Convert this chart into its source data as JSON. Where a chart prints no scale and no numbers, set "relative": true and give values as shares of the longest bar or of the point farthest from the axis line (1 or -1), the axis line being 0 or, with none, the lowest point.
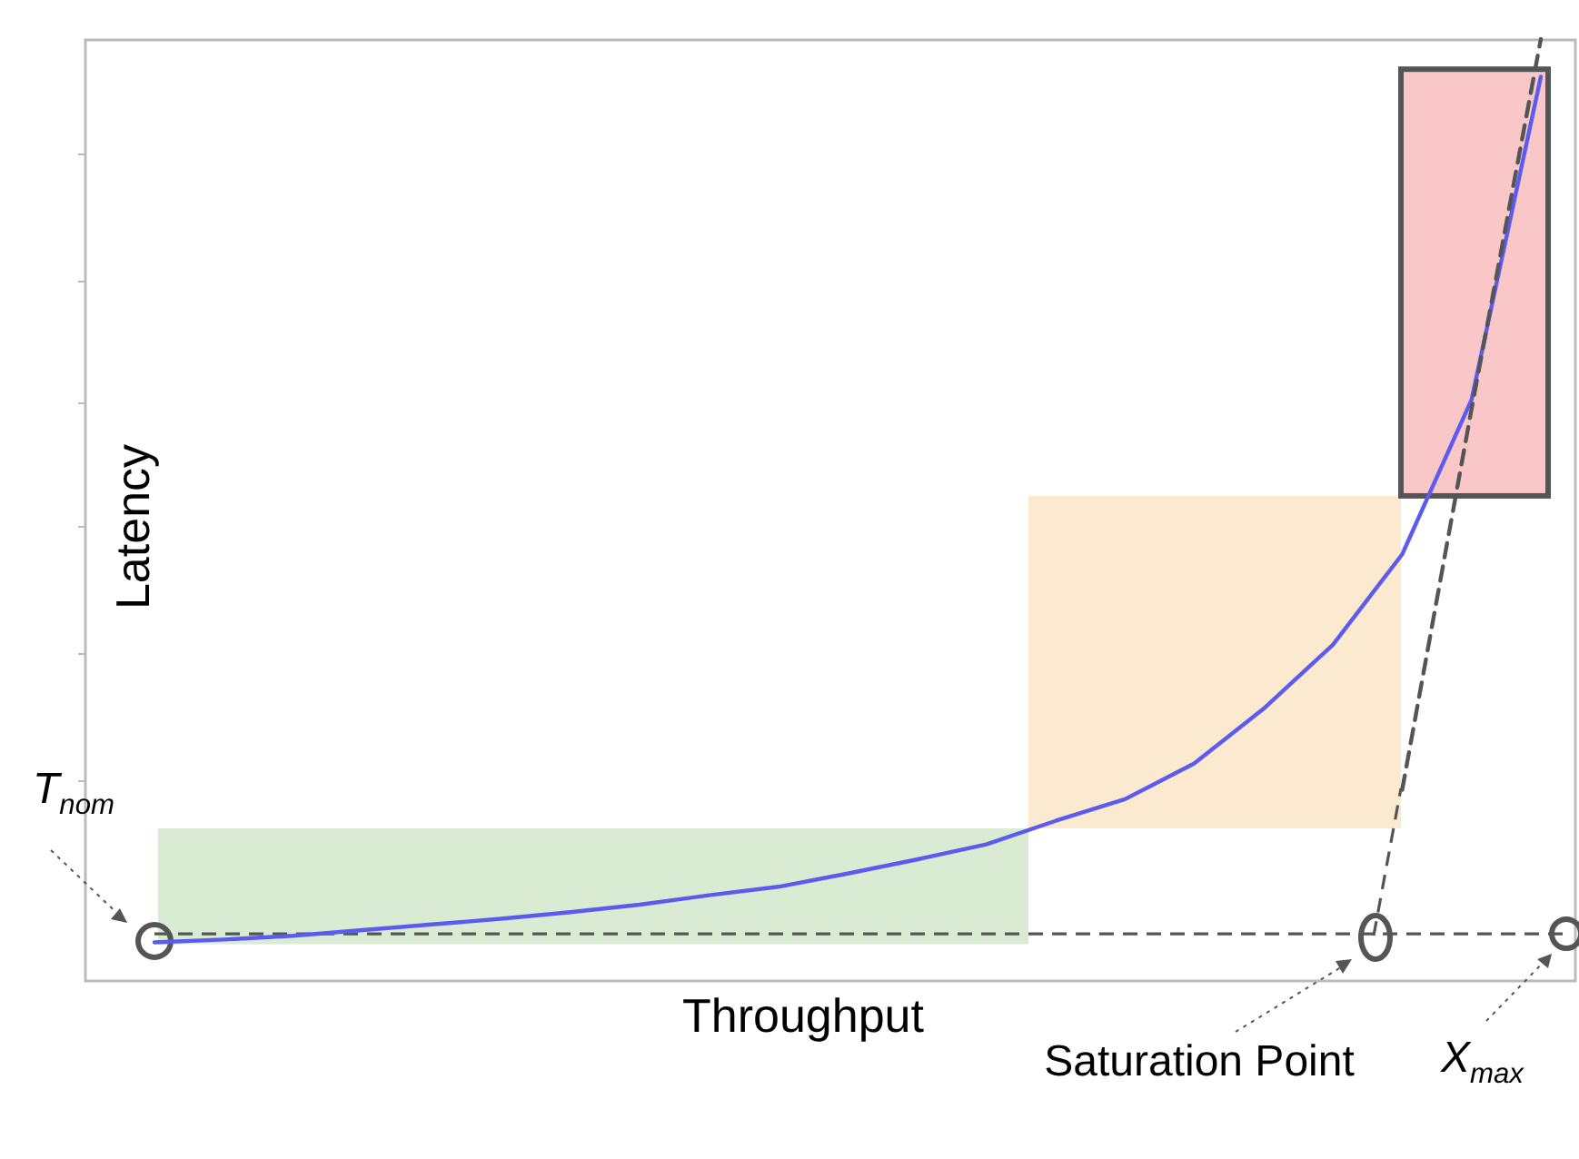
{
  "chart_data": {
    "type": "line",
    "relative": true,
    "xlabel": "Throughput",
    "ylabel": "Latency",
    "categories": [
      null,
      null,
      null,
      null,
      null,
      null,
      null,
      null,
      null,
      null,
      null,
      null,
      null,
      null,
      null,
      null,
      null,
      null,
      null,
      null,
      null
    ],
    "series": [
      {
        "color": "#5b5bef",
        "values": [
          0.041,
          0.044,
          0.048,
          0.054,
          0.06,
          0.066,
          0.073,
          0.081,
          0.091,
          0.1,
          0.114,
          0.129,
          0.145,
          0.17,
          0.193,
          0.231,
          0.289,
          0.357,
          0.453,
          0.617,
          0.96
        ]
      },
      {
        "color": "#555555",
        "line_style": "dashed",
        "values": [
          null,
          null,
          null,
          null,
          null,
          null,
          null,
          null,
          null,
          null,
          null,
          null,
          null,
          null,
          null,
          null,
          null,
          null,
          0.203,
          0.607,
          1
        ]
      }
    ],
    "ref_lines": [
      {
        "axis": "y",
        "value": 0.05,
        "color": "#555555",
        "line_style": "dashed"
      }
    ],
    "bands": [
      {
        "axis": "y",
        "from": 0.039,
        "to": 0.162,
        "color": "#d9ebd3"
      },
      {
        "axis": "y",
        "from": 0.162,
        "to": 0.515,
        "color": "#fbe9d0"
      },
      {
        "axis": "y",
        "from": 0.515,
        "to": 0.968,
        "color": "#f9c7c7"
      }
    ],
    "annotations": [
      "T$_{nom}$",
      "Saturation Point",
      "X$_{max}$"
    ],
    "marker": "none",
    "line_style": "solid"
  }
}
